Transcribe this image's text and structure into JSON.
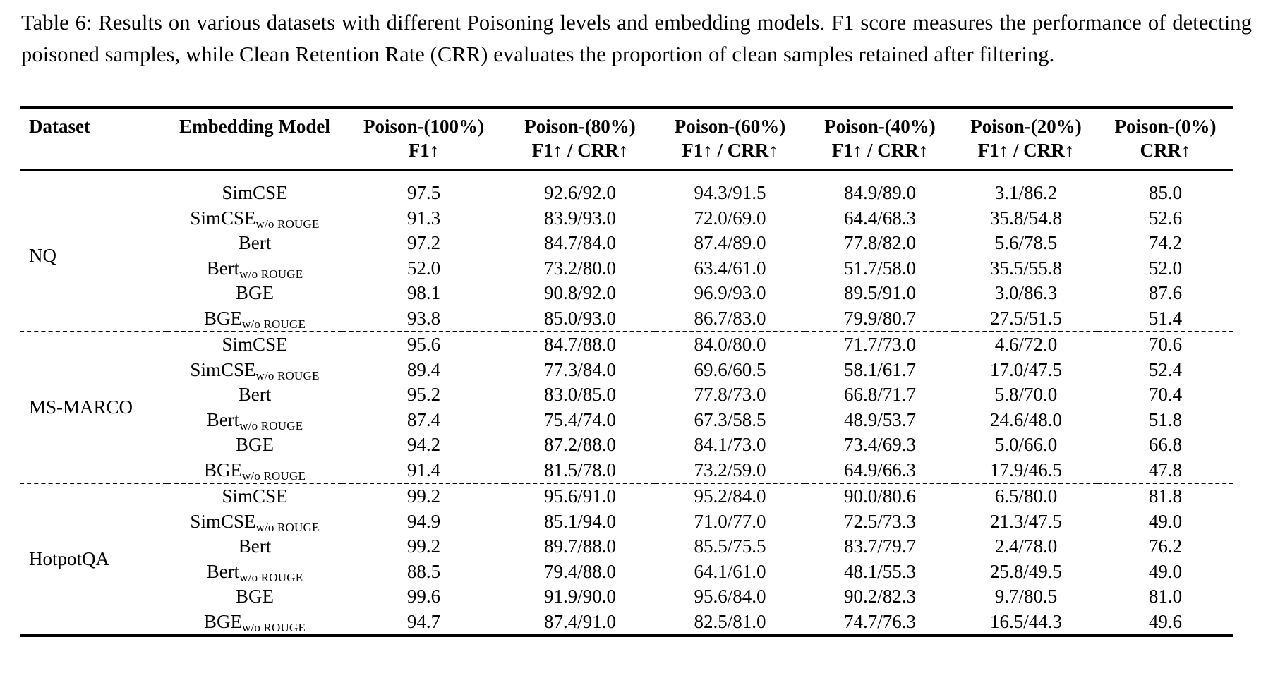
{
  "caption": {
    "text": "Table 6: Results on various datasets with different Poisoning levels and embedding models. F1 score measures the performance of detecting poisoned samples, while Clean Retention Rate (CRR) evaluates the proportion of clean samples retained after filtering."
  },
  "table": {
    "columns": [
      {
        "id": "dataset",
        "title": "Dataset",
        "metric": ""
      },
      {
        "id": "embedding-model",
        "title": "Embedding Model",
        "metric": ""
      },
      {
        "id": "poison-100",
        "title": "Poison-(100%)",
        "metric": "F1↑"
      },
      {
        "id": "poison-80",
        "title": "Poison-(80%)",
        "metric": "F1↑ / CRR↑"
      },
      {
        "id": "poison-60",
        "title": "Poison-(60%)",
        "metric": "F1↑ / CRR↑"
      },
      {
        "id": "poison-40",
        "title": "Poison-(40%)",
        "metric": "F1↑ / CRR↑"
      },
      {
        "id": "poison-20",
        "title": "Poison-(20%)",
        "metric": "F1↑ / CRR↑"
      },
      {
        "id": "poison-0",
        "title": "Poison-(0%)",
        "metric": "CRR↑"
      }
    ],
    "groups": [
      {
        "dataset": "NQ",
        "rows": [
          {
            "model": "SimCSE",
            "subscript": "",
            "values": [
              "97.5",
              "92.6/92.0",
              "94.3/91.5",
              "84.9/89.0",
              "3.1/86.2",
              "85.0"
            ]
          },
          {
            "model": "SimCSE",
            "subscript": "w/o ROUGE",
            "values": [
              "91.3",
              "83.9/93.0",
              "72.0/69.0",
              "64.4/68.3",
              "35.8/54.8",
              "52.6"
            ]
          },
          {
            "model": "Bert",
            "subscript": "",
            "values": [
              "97.2",
              "84.7/84.0",
              "87.4/89.0",
              "77.8/82.0",
              "5.6/78.5",
              "74.2"
            ]
          },
          {
            "model": "Bert",
            "subscript": "w/o ROUGE",
            "values": [
              "52.0",
              "73.2/80.0",
              "63.4/61.0",
              "51.7/58.0",
              "35.5/55.8",
              "52.0"
            ]
          },
          {
            "model": "BGE",
            "subscript": "",
            "values": [
              "98.1",
              "90.8/92.0",
              "96.9/93.0",
              "89.5/91.0",
              "3.0/86.3",
              "87.6"
            ]
          },
          {
            "model": "BGE",
            "subscript": "w/o ROUGE",
            "values": [
              "93.8",
              "85.0/93.0",
              "86.7/83.0",
              "79.9/80.7",
              "27.5/51.5",
              "51.4"
            ]
          }
        ]
      },
      {
        "dataset": "MS-MARCO",
        "rows": [
          {
            "model": "SimCSE",
            "subscript": "",
            "values": [
              "95.6",
              "84.7/88.0",
              "84.0/80.0",
              "71.7/73.0",
              "4.6/72.0",
              "70.6"
            ]
          },
          {
            "model": "SimCSE",
            "subscript": "w/o ROUGE",
            "values": [
              "89.4",
              "77.3/84.0",
              "69.6/60.5",
              "58.1/61.7",
              "17.0/47.5",
              "52.4"
            ]
          },
          {
            "model": "Bert",
            "subscript": "",
            "values": [
              "95.2",
              "83.0/85.0",
              "77.8/73.0",
              "66.8/71.7",
              "5.8/70.0",
              "70.4"
            ]
          },
          {
            "model": "Bert",
            "subscript": "w/o ROUGE",
            "values": [
              "87.4",
              "75.4/74.0",
              "67.3/58.5",
              "48.9/53.7",
              "24.6/48.0",
              "51.8"
            ]
          },
          {
            "model": "BGE",
            "subscript": "",
            "values": [
              "94.2",
              "87.2/88.0",
              "84.1/73.0",
              "73.4/69.3",
              "5.0/66.0",
              "66.8"
            ]
          },
          {
            "model": "BGE",
            "subscript": "w/o ROUGE",
            "values": [
              "91.4",
              "81.5/78.0",
              "73.2/59.0",
              "64.9/66.3",
              "17.9/46.5",
              "47.8"
            ]
          }
        ]
      },
      {
        "dataset": "HotpotQA",
        "rows": [
          {
            "model": "SimCSE",
            "subscript": "",
            "values": [
              "99.2",
              "95.6/91.0",
              "95.2/84.0",
              "90.0/80.6",
              "6.5/80.0",
              "81.8"
            ]
          },
          {
            "model": "SimCSE",
            "subscript": "w/o ROUGE",
            "values": [
              "94.9",
              "85.1/94.0",
              "71.0/77.0",
              "72.5/73.3",
              "21.3/47.5",
              "49.0"
            ]
          },
          {
            "model": "Bert",
            "subscript": "",
            "values": [
              "99.2",
              "89.7/88.0",
              "85.5/75.5",
              "83.7/79.7",
              "2.4/78.0",
              "76.2"
            ]
          },
          {
            "model": "Bert",
            "subscript": "w/o ROUGE",
            "values": [
              "88.5",
              "79.4/88.0",
              "64.1/61.0",
              "48.1/55.3",
              "25.8/49.5",
              "49.0"
            ]
          },
          {
            "model": "BGE",
            "subscript": "",
            "values": [
              "99.6",
              "91.9/90.0",
              "95.6/84.0",
              "90.2/82.3",
              "9.7/80.5",
              "81.0"
            ]
          },
          {
            "model": "BGE",
            "subscript": "w/o ROUGE",
            "values": [
              "94.7",
              "87.4/91.0",
              "82.5/81.0",
              "74.7/76.3",
              "16.5/44.3",
              "49.6"
            ]
          }
        ]
      }
    ]
  }
}
